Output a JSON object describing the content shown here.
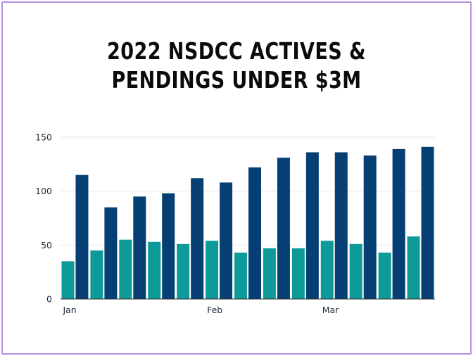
{
  "chart_data": {
    "type": "bar",
    "title_lines": [
      "2022 NSDCC ACTIVES &",
      "PENDINGS UNDER $3M"
    ],
    "x_tick_labels": [
      {
        "label": "Jan",
        "index": 0
      },
      {
        "label": "Feb",
        "index": 5
      },
      {
        "label": "Mar",
        "index": 9
      }
    ],
    "y_ticks": [
      "0",
      "50",
      "100",
      "150"
    ],
    "ylim": [
      0,
      150
    ],
    "grid": true,
    "series": [
      {
        "values": [
          35,
          45,
          55,
          53,
          51,
          54,
          43,
          47,
          47,
          54,
          51,
          43,
          58
        ],
        "color": "#0f9a9a"
      },
      {
        "values": [
          115,
          85,
          95,
          98,
          112,
          108,
          122,
          131,
          136,
          136,
          133,
          139,
          141
        ],
        "color": "#053f73"
      }
    ]
  }
}
